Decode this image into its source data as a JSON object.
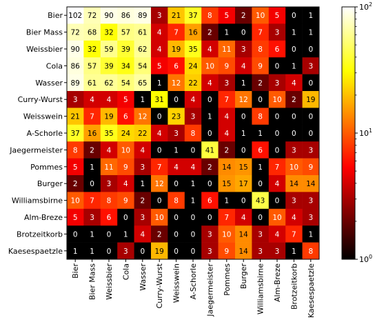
{
  "chart_data": {
    "type": "heatmap",
    "title": "",
    "xlabel": "",
    "ylabel": "",
    "color_scale": "log",
    "colormap": "hot",
    "colorbar": {
      "vmin": 1,
      "vmax": 100,
      "ticks": [
        {
          "value": 1,
          "base": "10",
          "exp": "0"
        },
        {
          "value": 10,
          "base": "10",
          "exp": "1"
        },
        {
          "value": 100,
          "base": "10",
          "exp": "2"
        }
      ]
    },
    "row_labels": [
      "Bier",
      "Bier Mass",
      "Weissbier",
      "Cola",
      "Wasser",
      "Curry-Wurst",
      "Weisswein",
      "A-Schorle",
      "Jaegermeister",
      "Pommes",
      "Burger",
      "Williamsbirne",
      "Alm-Breze",
      "Brotzeitkorb",
      "Kaesespaetzle"
    ],
    "col_labels": [
      "Bier",
      "Bier Mass",
      "Weissbier",
      "Cola",
      "Wasser",
      "Curry-Wurst",
      "Weisswein",
      "A-Schorle",
      "Jaegermeister",
      "Pommes",
      "Burger",
      "Williamsbirne",
      "Alm-Breze",
      "Brotzeitkorb",
      "Kaesespaetzle"
    ],
    "values": [
      [
        102,
        72,
        90,
        86,
        89,
        3,
        21,
        37,
        8,
        5,
        2,
        10,
        5,
        0,
        1
      ],
      [
        72,
        68,
        32,
        57,
        61,
        4,
        7,
        16,
        2,
        1,
        0,
        7,
        3,
        1,
        1
      ],
      [
        90,
        32,
        59,
        39,
        62,
        4,
        19,
        35,
        4,
        11,
        3,
        8,
        6,
        0,
        0
      ],
      [
        86,
        57,
        39,
        34,
        54,
        5,
        6,
        24,
        10,
        9,
        4,
        9,
        0,
        1,
        3
      ],
      [
        89,
        61,
        62,
        54,
        65,
        1,
        12,
        22,
        4,
        3,
        1,
        2,
        3,
        4,
        0
      ],
      [
        3,
        4,
        4,
        5,
        1,
        31,
        0,
        4,
        0,
        7,
        12,
        0,
        10,
        2,
        19
      ],
      [
        21,
        7,
        19,
        6,
        12,
        0,
        23,
        3,
        1,
        4,
        0,
        8,
        0,
        0,
        0
      ],
      [
        37,
        16,
        35,
        24,
        22,
        4,
        3,
        8,
        0,
        4,
        1,
        1,
        0,
        0,
        0
      ],
      [
        8,
        2,
        4,
        10,
        4,
        0,
        1,
        0,
        41,
        2,
        0,
        6,
        0,
        3,
        3
      ],
      [
        5,
        1,
        11,
        9,
        3,
        7,
        4,
        4,
        2,
        14,
        15,
        1,
        7,
        10,
        9
      ],
      [
        2,
        0,
        3,
        4,
        1,
        12,
        0,
        1,
        0,
        15,
        17,
        0,
        4,
        14,
        14
      ],
      [
        10,
        7,
        8,
        9,
        2,
        0,
        8,
        1,
        6,
        1,
        0,
        43,
        0,
        3,
        3
      ],
      [
        5,
        3,
        6,
        0,
        3,
        10,
        0,
        0,
        0,
        7,
        4,
        0,
        10,
        4,
        3
      ],
      [
        0,
        1,
        0,
        1,
        4,
        2,
        0,
        0,
        3,
        10,
        14,
        3,
        4,
        7,
        1
      ],
      [
        1,
        1,
        0,
        3,
        0,
        19,
        0,
        0,
        3,
        9,
        14,
        3,
        3,
        1,
        8
      ]
    ]
  }
}
